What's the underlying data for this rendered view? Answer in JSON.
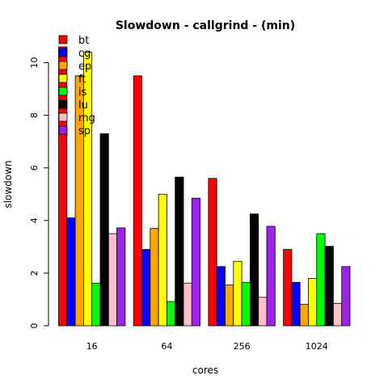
{
  "chart_data": {
    "type": "bar",
    "title": "Slowdown - callgrind - (min)",
    "xlabel": "cores",
    "ylabel": "slowdown",
    "categories": [
      "16",
      "64",
      "256",
      "1024"
    ],
    "ylim": [
      0,
      10.6
    ],
    "yticks": [
      0,
      2,
      4,
      6,
      8,
      10
    ],
    "legend_position": "top-left",
    "series": [
      {
        "name": "bt",
        "color": "#ff0000",
        "values": [
          10.6,
          9.5,
          5.6,
          2.9
        ]
      },
      {
        "name": "cg",
        "color": "#0000ff",
        "values": [
          4.1,
          2.9,
          2.25,
          1.65
        ]
      },
      {
        "name": "ep",
        "color": "#ffa500",
        "values": [
          9.5,
          3.7,
          1.55,
          0.82
        ]
      },
      {
        "name": "ft",
        "color": "#ffff00",
        "values": [
          10.4,
          5.0,
          2.45,
          1.8
        ]
      },
      {
        "name": "is",
        "color": "#00ff00",
        "values": [
          1.62,
          0.92,
          1.65,
          3.5
        ]
      },
      {
        "name": "lu",
        "color": "#000000",
        "values": [
          7.3,
          5.65,
          4.25,
          3.02
        ]
      },
      {
        "name": "mg",
        "color": "#ffc0cb",
        "values": [
          3.5,
          1.62,
          1.08,
          0.85
        ]
      },
      {
        "name": "sp",
        "color": "#a020f0",
        "values": [
          3.72,
          4.85,
          3.78,
          2.25
        ]
      }
    ]
  }
}
